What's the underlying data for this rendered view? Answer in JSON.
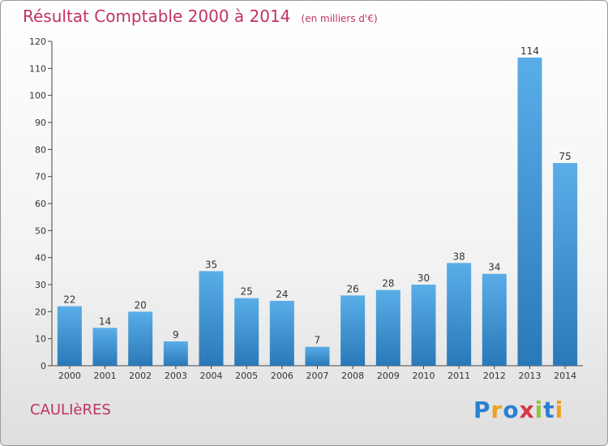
{
  "title": "Résultat Comptable 2000 à 2014",
  "unit": "(en milliers d'€)",
  "commune": "CAULIèRES",
  "logo": {
    "letters": [
      "P",
      "r",
      "o",
      "x",
      "i",
      "t",
      "i"
    ],
    "colors": [
      "#2a7fd0",
      "#f0a020",
      "#2a7fd0",
      "#d8344a",
      "#8cc63f",
      "#2a7fd0",
      "#f0a020"
    ]
  },
  "colors": {
    "bar_top": "#5aaee8",
    "bar_bottom": "#2a78b8",
    "axis": "#444444",
    "title": "#c0335f"
  },
  "chart_data": {
    "type": "bar",
    "title": "Résultat Comptable 2000 à 2014",
    "xlabel": "",
    "ylabel": "",
    "ylim": [
      0,
      120
    ],
    "yticks": [
      0,
      10,
      20,
      30,
      40,
      50,
      60,
      70,
      80,
      90,
      100,
      110,
      120
    ],
    "categories": [
      "2000",
      "2001",
      "2002",
      "2003",
      "2004",
      "2005",
      "2006",
      "2007",
      "2008",
      "2009",
      "2010",
      "2011",
      "2012",
      "2013",
      "2014"
    ],
    "values": [
      22,
      14,
      20,
      9,
      35,
      25,
      24,
      7,
      26,
      28,
      30,
      38,
      34,
      114,
      75
    ],
    "grid": false,
    "legend": "none"
  }
}
